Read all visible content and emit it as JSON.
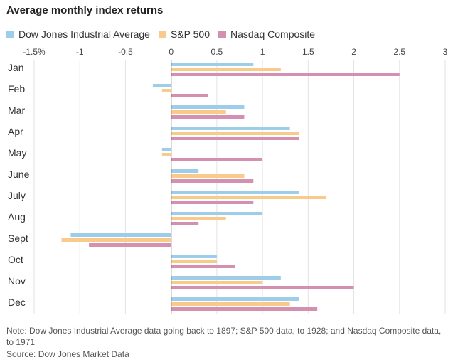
{
  "chart_data": {
    "type": "bar",
    "orientation": "horizontal",
    "title": "Average monthly index returns",
    "categories": [
      "Jan",
      "Feb",
      "Mar",
      "Apr",
      "May",
      "June",
      "July",
      "Aug",
      "Sept",
      "Oct",
      "Nov",
      "Dec"
    ],
    "series": [
      {
        "name": "Dow Jones Industrial Average",
        "color": "#9ecde9",
        "values": [
          0.9,
          -0.2,
          0.8,
          1.3,
          -0.1,
          0.3,
          1.4,
          1.0,
          -1.1,
          0.5,
          1.2,
          1.4
        ]
      },
      {
        "name": "S&P 500",
        "color": "#f9cb8a",
        "values": [
          1.2,
          -0.1,
          0.6,
          1.4,
          -0.1,
          0.8,
          1.7,
          0.6,
          -1.2,
          0.5,
          1.0,
          1.3
        ]
      },
      {
        "name": "Nasdaq Composite",
        "color": "#d490b0",
        "values": [
          2.5,
          0.4,
          0.8,
          1.4,
          1.0,
          0.9,
          0.9,
          0.3,
          -0.9,
          0.7,
          2.0,
          1.6
        ]
      }
    ],
    "xlim": [
      -1.5,
      3
    ],
    "ticks": [
      {
        "value": -1.5,
        "label": "-1.5%"
      },
      {
        "value": -1,
        "label": "-1"
      },
      {
        "value": -0.5,
        "label": "-0.5"
      },
      {
        "value": 0,
        "label": "0"
      },
      {
        "value": 0.5,
        "label": "0.5"
      },
      {
        "value": 1,
        "label": "1"
      },
      {
        "value": 1.5,
        "label": "1.5"
      },
      {
        "value": 2,
        "label": "2"
      },
      {
        "value": 2.5,
        "label": "2.5"
      },
      {
        "value": 3,
        "label": "3"
      }
    ],
    "grid": true,
    "legend_position": "top-left"
  },
  "note": "Note: Dow Jones Industrial Average data going back to 1897; S&P 500 data, to 1928; and Nasdaq Composite data, to 1971",
  "source": "Source: Dow Jones Market Data"
}
